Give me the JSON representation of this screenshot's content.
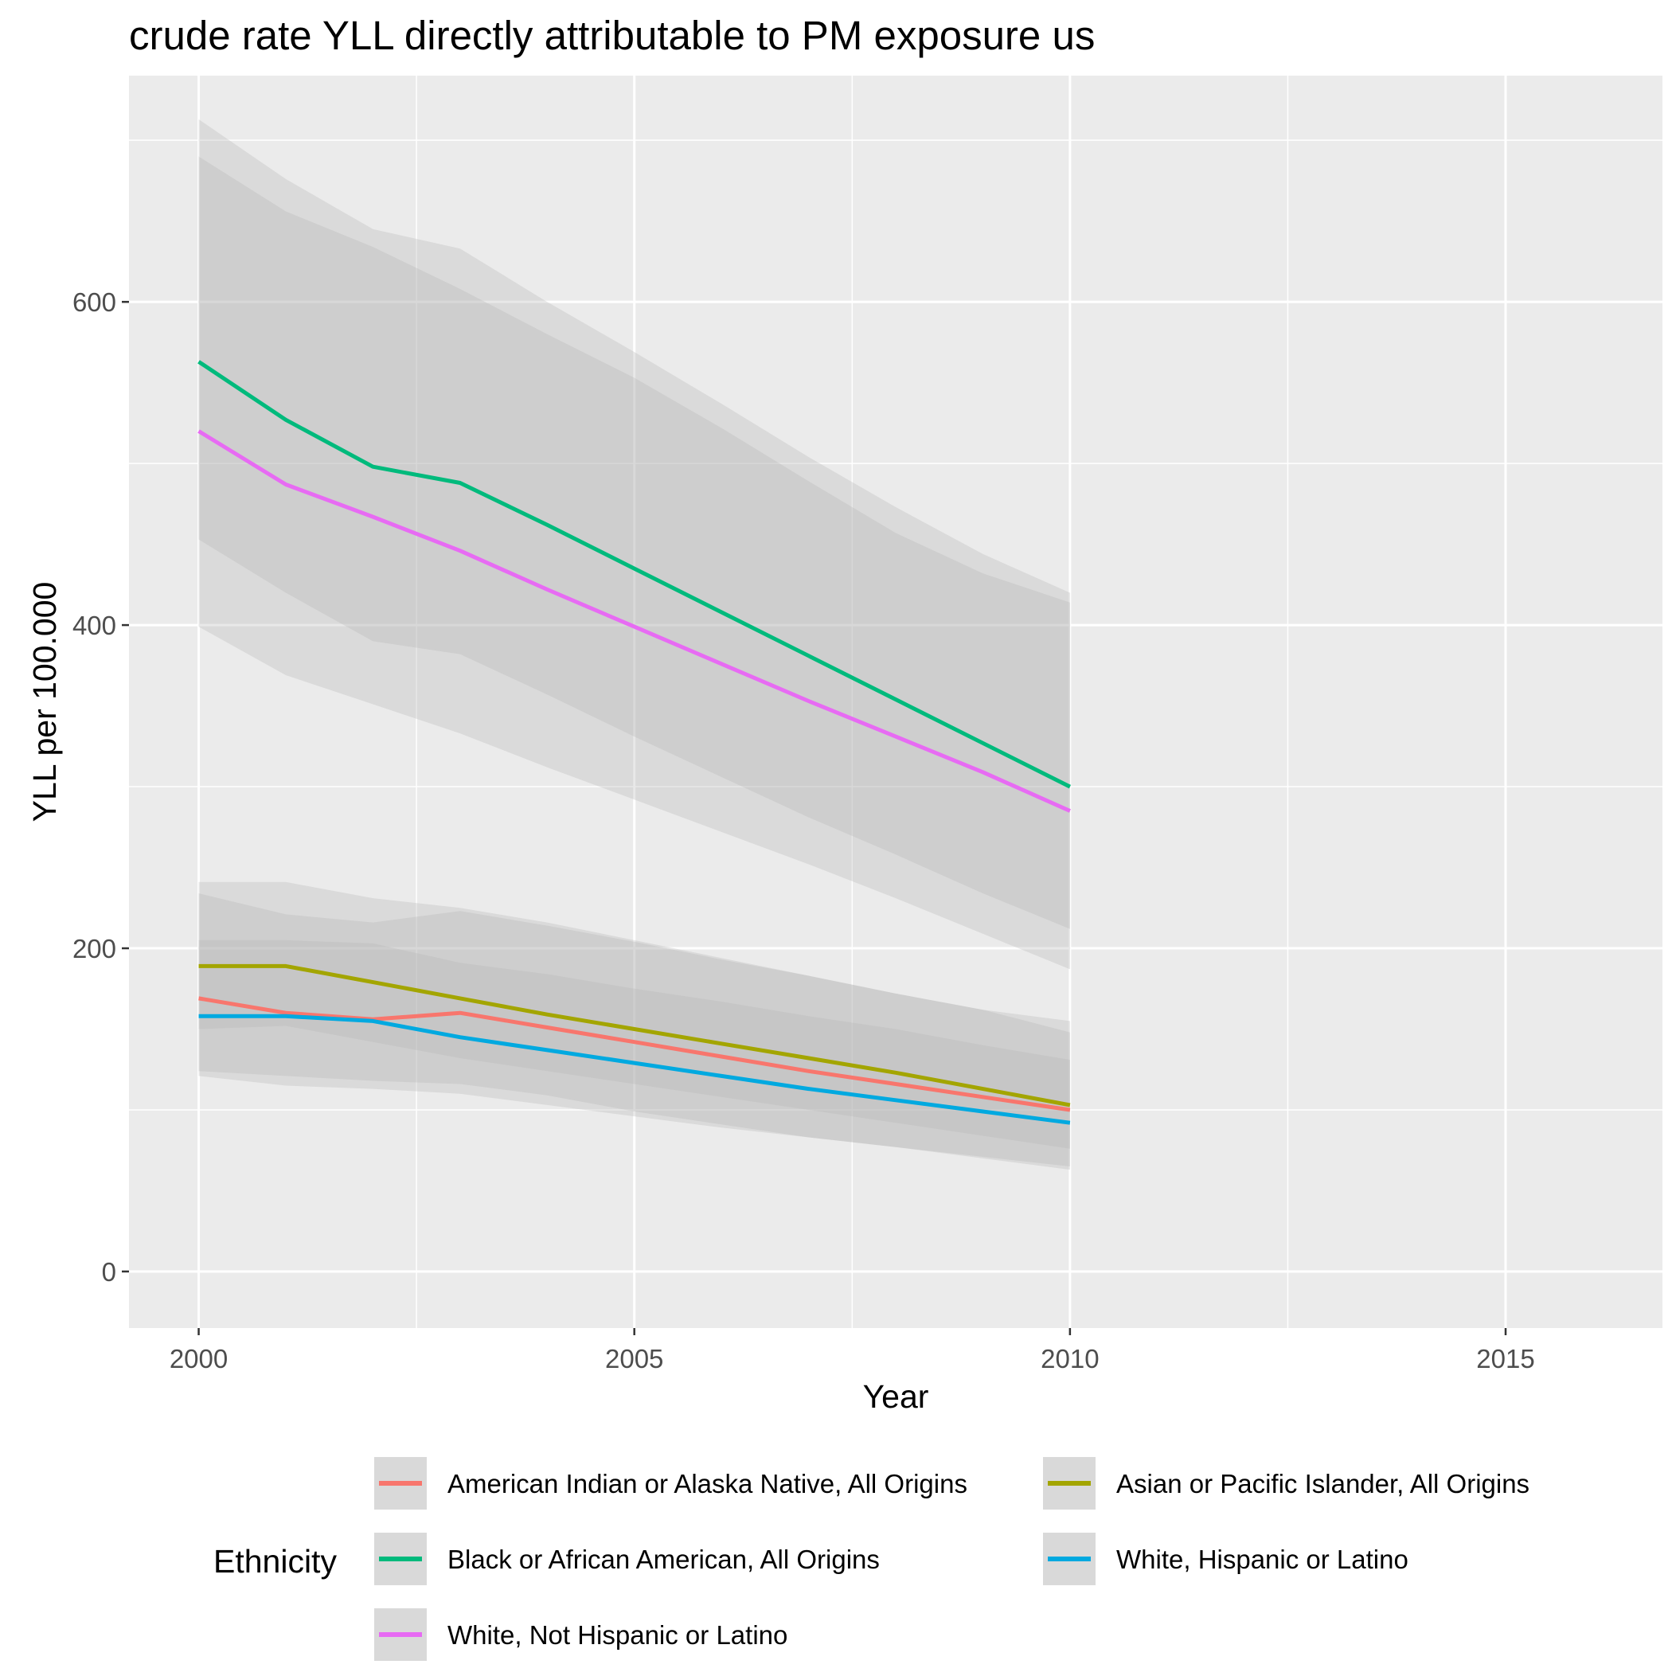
{
  "chart_data": {
    "type": "line",
    "title": "crude rate YLL directly attributable to PM exposure us",
    "xlabel": "Year",
    "ylabel": "YLL per 100.000",
    "xlim": [
      1999.2,
      2016.8
    ],
    "ylim": [
      -35,
      740
    ],
    "x_ticks": [
      2000,
      2005,
      2010,
      2015
    ],
    "x_tick_labels": [
      "2000",
      "2005",
      "2010",
      "2015"
    ],
    "y_ticks": [
      0,
      200,
      400,
      600
    ],
    "y_tick_labels": [
      "0",
      "200",
      "400",
      "600"
    ],
    "grid": true,
    "background": "#ebebeb",
    "band_color": "#b3b3b3",
    "x": [
      2000,
      2001,
      2002,
      2003,
      2004,
      2005,
      2006,
      2007,
      2008,
      2009,
      2010
    ],
    "legend": {
      "title": "Ethnicity",
      "position": "bottom"
    },
    "series": [
      {
        "name": "American Indian or Alaska Native, All Origins",
        "color": "#F8766D",
        "values": [
          169,
          160,
          156,
          160,
          151,
          142,
          133,
          124,
          116,
          108,
          100
        ],
        "lower": [
          121,
          115,
          113,
          110,
          103,
          96,
          89,
          83,
          77,
          71,
          65
        ],
        "upper": [
          241,
          241,
          231,
          225,
          216,
          205,
          194,
          183,
          172,
          162,
          155
        ]
      },
      {
        "name": "Asian or Pacific Islander, All Origins",
        "color": "#A3A500",
        "values": [
          189,
          189,
          179,
          169,
          159,
          150,
          141,
          132,
          123,
          113,
          103
        ],
        "lower": [
          150,
          152,
          142,
          132,
          124,
          116,
          108,
          100,
          92,
          84,
          76
        ],
        "upper": [
          234,
          221,
          216,
          223,
          214,
          204,
          193,
          183,
          172,
          162,
          148
        ]
      },
      {
        "name": "Black or African American, All Origins",
        "color": "#00BA7C",
        "values": [
          563,
          527,
          498,
          488,
          462,
          435,
          408,
          381,
          354,
          327,
          300
        ],
        "lower": [
          453,
          420,
          390,
          382,
          357,
          331,
          306,
          281,
          258,
          234,
          212
        ],
        "upper": [
          690,
          656,
          634,
          608,
          580,
          553,
          522,
          489,
          457,
          432,
          414
        ]
      },
      {
        "name": "White, Hispanic or Latino",
        "color": "#00A9E0",
        "values": [
          158,
          158,
          155,
          145,
          137,
          129,
          121,
          113,
          106,
          99,
          92
        ],
        "lower": [
          124,
          121,
          118,
          116,
          109,
          99,
          91,
          83,
          77,
          70,
          63
        ],
        "upper": [
          205,
          205,
          203,
          191,
          184,
          175,
          167,
          158,
          150,
          140,
          131
        ]
      },
      {
        "name": "White, Not Hispanic or Latino",
        "color": "#E76BF3",
        "values": [
          520,
          487,
          467,
          446,
          422,
          399,
          376,
          353,
          331,
          309,
          285
        ],
        "lower": [
          399,
          369,
          351,
          333,
          312,
          292,
          272,
          252,
          231,
          209,
          187
        ],
        "upper": [
          713,
          676,
          645,
          633,
          600,
          569,
          537,
          504,
          473,
          444,
          420
        ]
      }
    ]
  }
}
